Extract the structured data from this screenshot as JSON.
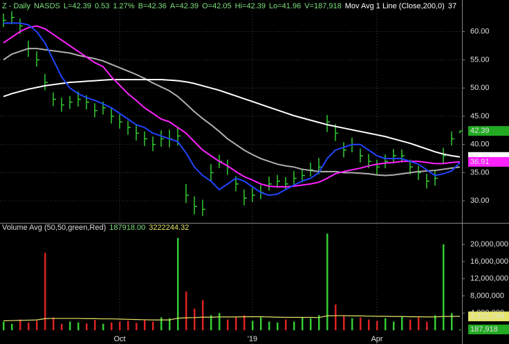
{
  "chart_data": [
    {
      "type": "ohlc",
      "header": [
        "Z - Daily",
        "NASDS",
        "L=42.39",
        "0.53",
        "1.27%",
        "B=42.36",
        "A=42.39",
        "O=42.05",
        "Hi=42.39",
        "Lo=41.96",
        "V=187,918",
        "Mov Avg 1 Line (Close,200,0)",
        "37"
      ],
      "categories": [
        null,
        null,
        null,
        null,
        null,
        null,
        null,
        null,
        null,
        null,
        null,
        null,
        null,
        null,
        "Oct",
        null,
        null,
        null,
        null,
        null,
        null,
        null,
        null,
        null,
        null,
        null,
        null,
        null,
        null,
        null,
        "'19",
        null,
        null,
        null,
        null,
        null,
        null,
        null,
        null,
        null,
        null,
        null,
        null,
        null,
        null,
        "Apr",
        null,
        null,
        null,
        null,
        null,
        null,
        null,
        null,
        null,
        null
      ],
      "high": [
        63.2,
        63.6,
        62.3,
        58.4,
        56.5,
        52.5,
        49.2,
        48.3,
        48.6,
        49.4,
        48.7,
        47.3,
        47.6,
        46.4,
        45.3,
        44.2,
        43.4,
        42.3,
        41.4,
        42.5,
        42.6,
        43,
        33,
        30.8,
        30.2,
        36.5,
        38.2,
        37.3,
        34.4,
        32,
        32.4,
        32.8,
        34.3,
        34.6,
        34.2,
        35.3,
        35.7,
        36.8,
        37.6,
        45.2,
        43.6,
        40.4,
        41.2,
        39.3,
        38.3,
        37.3,
        38.2,
        39.2,
        39.1,
        37.3,
        36.2,
        34.8,
        35.4,
        39.4,
        42.3,
        42.39
      ],
      "low": [
        60.8,
        61.3,
        59.6,
        55.5,
        53.8,
        49.6,
        46.8,
        45.8,
        46.3,
        46.7,
        46.2,
        44.8,
        45.3,
        43.7,
        42.8,
        41.7,
        40.7,
        39.7,
        38.8,
        39.6,
        39.5,
        39.8,
        29.6,
        27.6,
        27.3,
        33.4,
        35.8,
        34.6,
        31.7,
        29.2,
        29.8,
        30.3,
        31.8,
        32.3,
        31.9,
        32.8,
        33.3,
        34.3,
        34.7,
        42.2,
        40.6,
        37.7,
        38.6,
        36.8,
        35.8,
        34.7,
        35.8,
        36.7,
        36.8,
        34.7,
        33.7,
        32.2,
        32.7,
        36.7,
        39.8,
        41.96
      ],
      "close": [
        62,
        62.5,
        61,
        57,
        55,
        51,
        48,
        47,
        47.5,
        48,
        47.5,
        46,
        46.5,
        45,
        44,
        43,
        42,
        41,
        40,
        41,
        41,
        41.5,
        31,
        29,
        28.5,
        35,
        37,
        36,
        33,
        30.5,
        31,
        31.5,
        33,
        33.5,
        33,
        34,
        34.5,
        35.5,
        36,
        44,
        42,
        39,
        40,
        38,
        37,
        36,
        37,
        38,
        38,
        36,
        35,
        33.5,
        34,
        38,
        41,
        42.39
      ],
      "color": "#33cc33",
      "close_label_color": "#22aa22",
      "series": [
        {
          "color": "#b0b0b0",
          "values": [
            55,
            56,
            56.5,
            57,
            57,
            56.8,
            56.6,
            56.4,
            56.2,
            55.8,
            55.5,
            55.2,
            54.8,
            54.2,
            53.6,
            53,
            52.4,
            51.7,
            50.9,
            50.2,
            49.5,
            48.5,
            47.2,
            45.8,
            44.6,
            43.5,
            42.3,
            41,
            40,
            39,
            38.2,
            37.5,
            37,
            36.5,
            36.2,
            36,
            35.6,
            35.4,
            35.2,
            35.2,
            35.2,
            35,
            35,
            34.9,
            34.8,
            34.6,
            34.5,
            34.6,
            34.8,
            35,
            35.2,
            35.3,
            35.4,
            35.6,
            35.8,
            36
          ]
        },
        {
          "color": "#ffffff",
          "values": [
            48.5,
            49,
            49.4,
            49.8,
            50.1,
            50.4,
            50.6,
            50.8,
            51,
            51.1,
            51.2,
            51.3,
            51.4,
            51.5,
            51.5,
            51.5,
            51.5,
            51.5,
            51.5,
            51.5,
            51.4,
            51.3,
            51.1,
            50.8,
            50.4,
            50,
            49.6,
            49.1,
            48.6,
            48.1,
            47.6,
            47.1,
            46.6,
            46.1,
            45.6,
            45.1,
            44.7,
            44.3,
            43.9,
            43.5,
            43.2,
            42.9,
            42.6,
            42.3,
            42,
            41.7,
            41.4,
            41,
            40.6,
            40.2,
            39.7,
            39.2,
            38.7,
            38.3,
            38,
            37.78
          ]
        },
        {
          "color": "#ff22ff",
          "values": [
            58,
            59,
            60,
            60.7,
            61,
            60.5,
            59.5,
            58.5,
            57.5,
            56.5,
            55.5,
            54.5,
            53.8,
            52,
            50.5,
            49,
            47.8,
            46.5,
            45.5,
            44.5,
            44,
            43,
            42,
            40.5,
            39,
            38,
            37,
            36.2,
            35.2,
            34.3,
            33.7,
            33,
            32.6,
            32.5,
            32.5,
            32.6,
            32.8,
            33,
            33.3,
            34,
            34.8,
            35.2,
            35.5,
            35.8,
            36.2,
            36.5,
            36.7,
            36.8,
            37,
            37,
            37,
            36.8,
            36.6,
            36.6,
            36.8,
            36.91
          ]
        },
        {
          "color": "#2244ff",
          "values": [
            61.5,
            61.5,
            61.5,
            61.2,
            60,
            58,
            55,
            52,
            50,
            49,
            48.3,
            47.8,
            47.2,
            46.5,
            45.5,
            44.5,
            43.5,
            43,
            42,
            41.5,
            41,
            40.5,
            38.5,
            36,
            34.5,
            33.5,
            32,
            33,
            34,
            33.5,
            32.5,
            31.5,
            31,
            31.2,
            32,
            32.8,
            33.5,
            34,
            35,
            37.5,
            39,
            39.5,
            40,
            40,
            39,
            38,
            37.5,
            37.5,
            37.5,
            37,
            36.5,
            35.5,
            34.5,
            34.8,
            35.3,
            36.8
          ]
        }
      ],
      "ylim": [
        26.1,
        65.6
      ],
      "yticks": [
        {
          "value": 30,
          "label": "30.00"
        },
        {
          "value": 35,
          "label": "35.00"
        },
        {
          "value": 40,
          "label": "40.00"
        },
        {
          "value": 45,
          "label": "45.00"
        },
        {
          "value": 50,
          "label": "50.00"
        },
        {
          "value": 55,
          "label": "55.00"
        },
        {
          "value": 60,
          "label": "60.00"
        }
      ],
      "grid": true
    },
    {
      "type": "bar",
      "header": [
        "Volume Avg (50,50,green,Red)",
        "187918.00",
        "3222244.32"
      ],
      "up_color": "#33cc33",
      "down_color": "#dd2222",
      "values": [
        2000000,
        1500000,
        2500000,
        1800000,
        2200000,
        18000000,
        3000000,
        1500000,
        2000000,
        1800000,
        1600000,
        2400000,
        1500000,
        1800000,
        2000000,
        2200000,
        1700000,
        2500000,
        2000000,
        3000000,
        2800000,
        21500000,
        9000000,
        5000000,
        7000000,
        3500000,
        4000000,
        2500000,
        3000000,
        3500000,
        2200000,
        3000000,
        2000000,
        1800000,
        2500000,
        2000000,
        3000000,
        2800000,
        3500000,
        22500000,
        6000000,
        3500000,
        2800000,
        3000000,
        2500000,
        2200000,
        2800000,
        2000000,
        3200000,
        2500000,
        3000000,
        2000000,
        3500000,
        20000000,
        4000000,
        187918
      ],
      "last_label": {
        "value": 187918,
        "label": "187,918"
      },
      "avg": {
        "color": "#e6e66a",
        "values": [
          2200000,
          2250000,
          2300000,
          2350000,
          2400000,
          2700000,
          2750000,
          2750000,
          2750000,
          2750000,
          2700000,
          2700000,
          2650000,
          2650000,
          2600000,
          2550000,
          2500000,
          2450000,
          2400000,
          2400000,
          2400000,
          2800000,
          2900000,
          2950000,
          3050000,
          3050000,
          3100000,
          3100000,
          3100000,
          3150000,
          3150000,
          3150000,
          3100000,
          3050000,
          3000000,
          3000000,
          3000000,
          3000000,
          2950000,
          3350000,
          3400000,
          3400000,
          3350000,
          3350000,
          3300000,
          3250000,
          3250000,
          3200000,
          3200000,
          3150000,
          3150000,
          3100000,
          3100000,
          3200000,
          3220000,
          3222244
        ],
        "last_label": {
          "value": 3222244,
          "label": "3,222,244"
        }
      },
      "ylim": [
        -3200000,
        25000000
      ],
      "yticks": [
        {
          "value": 4000000,
          "label": "4,000,000"
        },
        {
          "value": 8000000,
          "label": "8,000,000"
        },
        {
          "value": 12000000,
          "label": "12,000,000"
        },
        {
          "value": 16000000,
          "label": "16,000,000"
        },
        {
          "value": 20000000,
          "label": "20,000,000"
        }
      ]
    }
  ]
}
